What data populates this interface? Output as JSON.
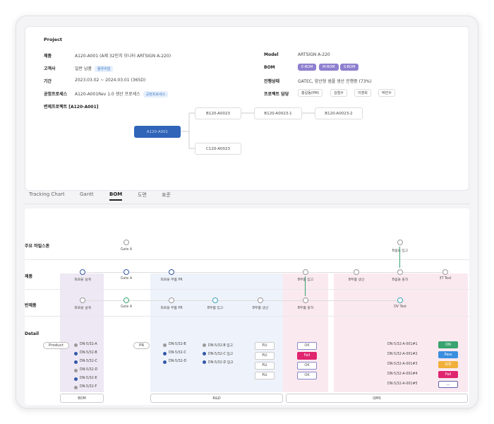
{
  "project": {
    "section_title": "Project",
    "fields_left": [
      {
        "label": "제품",
        "value": "A120-A001 (A제 32인치 모니터 ARTSIGN A-220)"
      },
      {
        "label": "고객사",
        "value": "일반 납품",
        "chip": "물류위협"
      },
      {
        "label": "기간",
        "value": "2023.03.02 ~ 2024.03.01 (365D)"
      },
      {
        "label": "공정프로세스",
        "value": "A120-A001Rev 1.0 생산 프로세스",
        "chip": "공정프로세스"
      }
    ],
    "fields_right": [
      {
        "label": "Model",
        "value": "ARTSIGN A-220"
      },
      {
        "label": "BOM"
      },
      {
        "label": "진행상태",
        "value": "GATEC, 양산형 샘플 생산 진행중 (73%)"
      },
      {
        "label": "프로젝트 담당"
      }
    ],
    "bom_chips": [
      "E-BOM",
      "M-BOM",
      "S-BOM"
    ],
    "people": [
      "홍길동(PM)",
      "김철수",
      "이영희",
      "박민수"
    ],
    "derived_label": "변제프로젝트 [A120-A001]",
    "tree": {
      "root": "A120-A001",
      "child1": "B120-A0023",
      "child2": "C120-A0023",
      "grand1": "B120-A0023-1",
      "grand2": "B120-A0023-2"
    }
  },
  "tabs": [
    "Tracking Chart",
    "Gantt",
    "BOM",
    "도면",
    "표준"
  ],
  "active_tab": "BOM",
  "tracking": {
    "row_labels": [
      "주요 마일스톤",
      "제품",
      "반제품",
      "Detail"
    ],
    "milestones_top": [
      {
        "label": "Gate A"
      },
      {
        "label": "B샘플 입고"
      }
    ],
    "product_row": [
      "회로물 설계",
      "Gate A",
      "회로물 부품 PR",
      "B부품 입고",
      "B부품 생산",
      "B샘플 출하",
      "3T Test"
    ],
    "semi_row": [
      "회로물 설계",
      "Gate A",
      "회로물 부품 PR",
      "B부품 입고",
      "B부품 생산",
      "B부품 출하",
      "DV Test"
    ],
    "detail": {
      "product_pill": "Product",
      "pr_pill": "PR",
      "bom_items": [
        "DN-5/32-A",
        "DN-5/32-B",
        "DN-5/32-C",
        "DN-5/32-D",
        "DN-5/32-E",
        "DN-5/32-F"
      ],
      "pr_items": [
        "DN-5/32-B",
        "DN-5/32-C",
        "DN-5/32-D"
      ],
      "pr_items2": [
        "DN-5/32-B 입고",
        "DN-5/32-C 입고",
        "DN-5/32-D 입고"
      ],
      "pli_labels": [
        "PLI",
        "PLI",
        "PLI",
        "PLI"
      ],
      "qc_labels": [
        "OK",
        "Fail",
        "OK",
        "OK"
      ],
      "qms_items": [
        "DN-5/32-A-001#1",
        "DN-5/32-A-001#2",
        "DN-5/32-A-001#3",
        "DN-5/32-A-001#4",
        "DN-5/32-A-001#5"
      ],
      "qms_status": [
        "ON",
        "Pass",
        "보류",
        "Fail",
        "—"
      ],
      "status_colors": [
        "#3aa36f",
        "#3b8fe0",
        "#f1b03a",
        "#e0256f",
        "#ffffff"
      ]
    },
    "footer": [
      "BOM",
      "R&D",
      "QMS"
    ]
  }
}
